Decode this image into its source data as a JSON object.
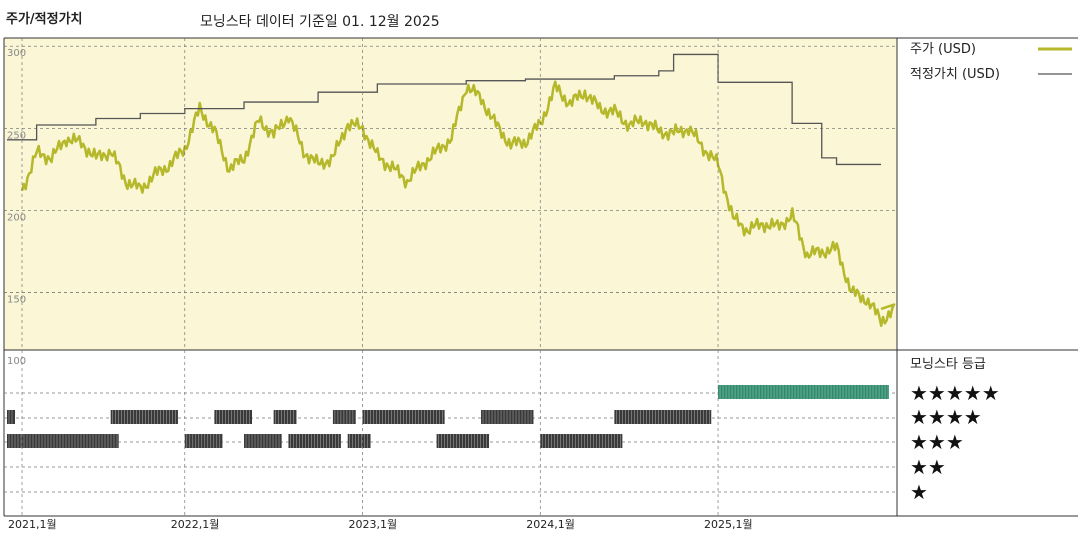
{
  "header": {
    "label": "주가/적정가치",
    "subtitle": "모닝스타 데이터 기준일 01. 12월 2025"
  },
  "legend": {
    "price_label": "주가 (USD)",
    "fair_value_label": "적정가치 (USD)",
    "rating_title": "모닝스타 등급",
    "stars": [
      "★★★★★",
      "★★★★",
      "★★★",
      "★★",
      "★"
    ]
  },
  "colors": {
    "price": "#b5b82a",
    "fair_value": "#555555",
    "top_panel_bg": "#faf6d6",
    "rating_past": "#3a3a3a",
    "rating_current": "#2e8b6c"
  },
  "chart_data": [
    {
      "type": "line",
      "title": "주가/적정가치",
      "xlabel": "",
      "ylabel": "",
      "ylim": [
        115,
        305
      ],
      "yticks": [
        300,
        250,
        200,
        150
      ],
      "x_tick_labels": [
        "2021,1월",
        "2022,1월",
        "2023,1월",
        "2024,1월",
        "2025,1월"
      ],
      "x_tick_dates": [
        "2021-01",
        "2022-01",
        "2023-01",
        "2024-01",
        "2025-01"
      ],
      "series": [
        {
          "name": "주가 (USD)",
          "points": [
            [
              "2021-01",
              212
            ],
            [
              "2021-02",
              235
            ],
            [
              "2021-03",
              232
            ],
            [
              "2021-04",
              244
            ],
            [
              "2021-05",
              241
            ],
            [
              "2021-06",
              232
            ],
            [
              "2021-07",
              236
            ],
            [
              "2021-08",
              218
            ],
            [
              "2021-09",
              213
            ],
            [
              "2021-10",
              222
            ],
            [
              "2021-11",
              228
            ],
            [
              "2021-12",
              238
            ],
            [
              "2022-01",
              262
            ],
            [
              "2022-02",
              248
            ],
            [
              "2022-03",
              225
            ],
            [
              "2022-04",
              232
            ],
            [
              "2022-05",
              255
            ],
            [
              "2022-06",
              246
            ],
            [
              "2022-07",
              258
            ],
            [
              "2022-08",
              236
            ],
            [
              "2022-09",
              228
            ],
            [
              "2022-10",
              232
            ],
            [
              "2022-11",
              253
            ],
            [
              "2022-12",
              250
            ],
            [
              "2023-01",
              233
            ],
            [
              "2023-02",
              226
            ],
            [
              "2023-03",
              218
            ],
            [
              "2023-04",
              228
            ],
            [
              "2023-05",
              236
            ],
            [
              "2023-06",
              244
            ],
            [
              "2023-07",
              276
            ],
            [
              "2023-08",
              268
            ],
            [
              "2023-09",
              252
            ],
            [
              "2023-10",
              240
            ],
            [
              "2023-11",
              242
            ],
            [
              "2023-12",
              253
            ],
            [
              "2024-01",
              275
            ],
            [
              "2024-02",
              265
            ],
            [
              "2024-03",
              272
            ],
            [
              "2024-04",
              262
            ],
            [
              "2024-05",
              260
            ],
            [
              "2024-06",
              252
            ],
            [
              "2024-07",
              255
            ],
            [
              "2024-08",
              248
            ],
            [
              "2024-09",
              247
            ],
            [
              "2024-10",
              250
            ],
            [
              "2024-11",
              238
            ],
            [
              "2024-12",
              228
            ],
            [
              "2025-01",
              195
            ],
            [
              "2025-02",
              188
            ],
            [
              "2025-03",
              192
            ],
            [
              "2025-04",
              190
            ],
            [
              "2025-05",
              197
            ],
            [
              "2025-06",
              173
            ],
            [
              "2025-07",
              175
            ],
            [
              "2025-08",
              177
            ],
            [
              "2025-09",
              150
            ],
            [
              "2025-10",
              146
            ],
            [
              "2025-11",
              133
            ],
            [
              "2025-12",
              140
            ]
          ]
        },
        {
          "name": "적정가치 (USD)",
          "step": true,
          "points": [
            [
              "2021-01",
              243
            ],
            [
              "2021-03",
              252
            ],
            [
              "2021-07",
              256
            ],
            [
              "2021-10",
              259
            ],
            [
              "2022-01",
              262
            ],
            [
              "2022-05",
              266
            ],
            [
              "2022-10",
              272
            ],
            [
              "2023-02",
              277
            ],
            [
              "2023-08",
              279
            ],
            [
              "2023-12",
              280
            ],
            [
              "2024-06",
              282
            ],
            [
              "2024-09",
              285
            ],
            [
              "2024-10",
              295
            ],
            [
              "2025-01",
              278
            ],
            [
              "2025-06",
              253
            ],
            [
              "2025-08",
              232
            ],
            [
              "2025-09",
              228
            ],
            [
              "2025-12",
              228
            ]
          ]
        }
      ]
    },
    {
      "type": "table",
      "title": "모닝스타 등급",
      "rows": [
        "★★★★★",
        "★★★★",
        "★★★",
        "★★",
        "★"
      ],
      "segments": [
        {
          "stars": 4,
          "from": "2021-01",
          "to": "2021-01"
        },
        {
          "stars": 3,
          "from": "2021-01",
          "to": "2021-08"
        },
        {
          "stars": 4,
          "from": "2021-08",
          "to": "2021-12"
        },
        {
          "stars": 3,
          "from": "2022-01",
          "to": "2022-03"
        },
        {
          "stars": 4,
          "from": "2022-03",
          "to": "2022-05"
        },
        {
          "stars": 3,
          "from": "2022-05",
          "to": "2022-07"
        },
        {
          "stars": 4,
          "from": "2022-07",
          "to": "2022-08"
        },
        {
          "stars": 3,
          "from": "2022-08",
          "to": "2022-11"
        },
        {
          "stars": 4,
          "from": "2022-11",
          "to": "2022-12"
        },
        {
          "stars": 3,
          "from": "2022-12",
          "to": "2023-01"
        },
        {
          "stars": 4,
          "from": "2023-01",
          "to": "2023-06"
        },
        {
          "stars": 3,
          "from": "2023-06",
          "to": "2023-09"
        },
        {
          "stars": 4,
          "from": "2023-09",
          "to": "2023-12"
        },
        {
          "stars": 3,
          "from": "2024-01",
          "to": "2024-06"
        },
        {
          "stars": 4,
          "from": "2024-06",
          "to": "2024-12"
        },
        {
          "stars": 5,
          "from": "2025-01",
          "to": "2025-12"
        }
      ]
    }
  ]
}
